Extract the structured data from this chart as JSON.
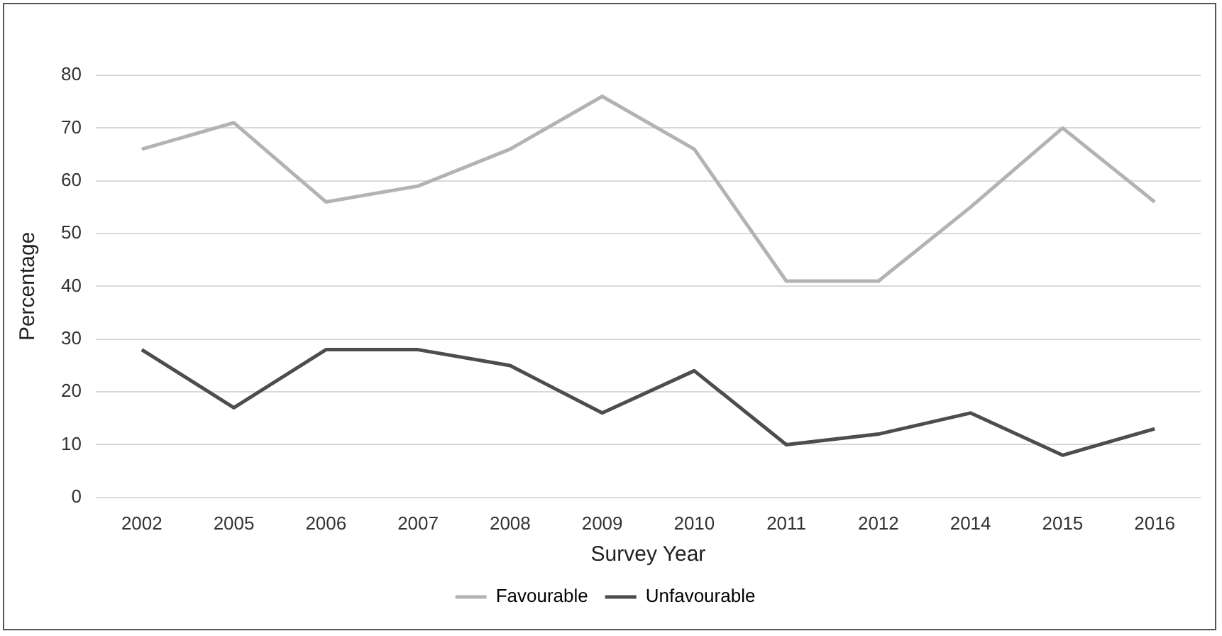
{
  "chart_data": {
    "type": "line",
    "xlabel": "Survey Year",
    "ylabel": "Percentage",
    "categories": [
      "2002",
      "2005",
      "2006",
      "2007",
      "2008",
      "2009",
      "2010",
      "2011",
      "2012",
      "2014",
      "2015",
      "2016"
    ],
    "series": [
      {
        "name": "Favourable",
        "color": "#b3b3b3",
        "values": [
          66,
          71,
          56,
          59,
          66,
          76,
          66,
          41,
          41,
          55,
          70,
          56
        ]
      },
      {
        "name": "Unfavourable",
        "color": "#4d4d4d",
        "values": [
          28,
          17,
          28,
          28,
          25,
          16,
          24,
          10,
          12,
          16,
          8,
          13
        ]
      }
    ],
    "ylim": [
      0,
      80
    ],
    "yticks": [
      0,
      10,
      20,
      30,
      40,
      50,
      60,
      70,
      80
    ],
    "grid": "y",
    "legend": "bottom",
    "marker": "none",
    "line_style": "solid"
  }
}
